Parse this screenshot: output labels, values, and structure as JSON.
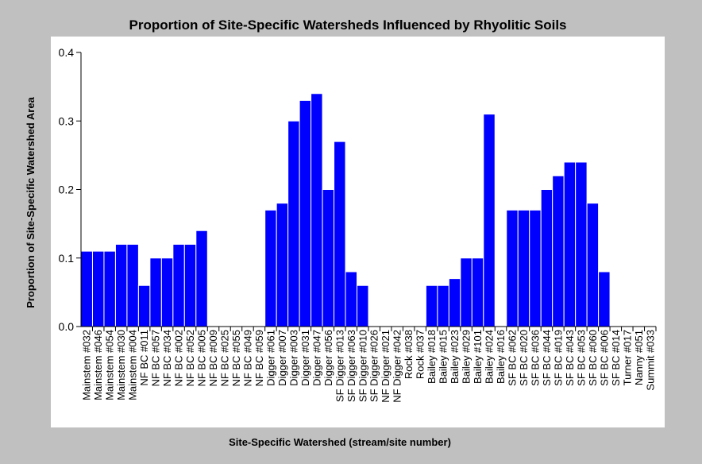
{
  "chart_data": {
    "type": "bar",
    "title": "Proportion of Site-Specific Watersheds Influenced by Rhyolitic Soils",
    "xlabel": "Site-Specific Watershed (stream/site number)",
    "ylabel": "Proportion of Site-Specific Watershed Area",
    "ylim": [
      0,
      0.4
    ],
    "yticks": [
      "0.0",
      "0.1",
      "0.2",
      "0.3",
      "0.4"
    ],
    "grid": false,
    "bar_color": "#0000ff",
    "categories": [
      "Mainstem #032",
      "Mainstem #046",
      "Mainstem #054",
      "Mainstem #030",
      "Mainstem #004",
      "NF BC #011",
      "NF BC #057",
      "NF BC #034",
      "NF BC #002",
      "NF BC #052",
      "NF BC #005",
      "NF BC #009",
      "NF BC #025",
      "NF BC #055",
      "NF BC #049",
      "NF BC #059",
      "Digger #061",
      "Digger #007",
      "Digger #003",
      "Digger #031",
      "Digger #047",
      "Digger #056",
      "SF Digger #013",
      "SF Digger #063",
      "SF Digger #010",
      "SF Digger #026",
      "NF Digger #021",
      "NF Digger #042",
      "Rock #038",
      "Rock #037",
      "Bailey #018",
      "Bailey #015",
      "Bailey #023",
      "Bailey #029",
      "Bailey #101",
      "Bailey #024",
      "Bailey #016",
      "SF BC #062",
      "SF BC #020",
      "SF BC #036",
      "SF BC #044",
      "SF BC #019",
      "SF BC #043",
      "SF BC #053",
      "SF BC #060",
      "SF BC #006",
      "SF BC #014",
      "Turner #017",
      "Nanny #051",
      "Summit #033"
    ],
    "values": [
      0.11,
      0.11,
      0.11,
      0.12,
      0.12,
      0.06,
      0.1,
      0.1,
      0.12,
      0.12,
      0.14,
      0,
      0,
      0,
      0,
      0,
      0.17,
      0.18,
      0.3,
      0.33,
      0.34,
      0.2,
      0.27,
      0.08,
      0.06,
      0,
      0,
      0,
      0,
      0,
      0.06,
      0.06,
      0.07,
      0.1,
      0.1,
      0.31,
      0,
      0.17,
      0.17,
      0.17,
      0.2,
      0.22,
      0.24,
      0.24,
      0.18,
      0.08,
      0,
      0,
      0,
      0
    ]
  }
}
